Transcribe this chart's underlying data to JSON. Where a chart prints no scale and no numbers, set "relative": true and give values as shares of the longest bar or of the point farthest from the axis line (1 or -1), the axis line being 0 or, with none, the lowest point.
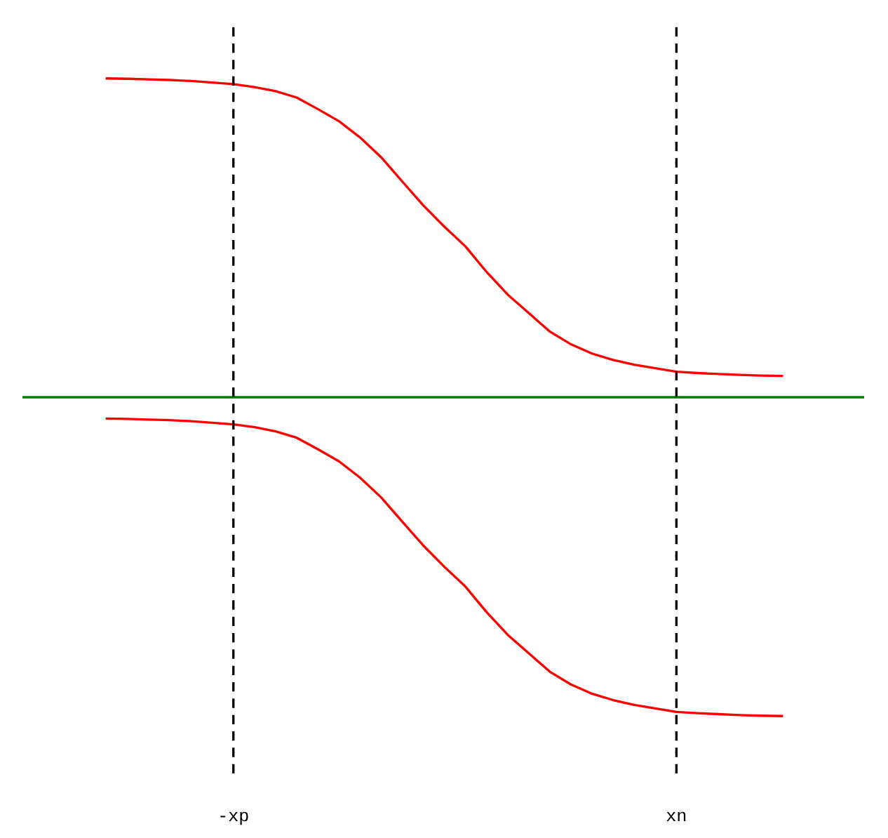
{
  "chart_data": {
    "type": "line",
    "relative": true,
    "tick_labels": "x",
    "line_style": "solid",
    "categories": [
      null,
      null,
      null,
      null,
      null,
      null,
      "-xp",
      null,
      null,
      null,
      null,
      null,
      null,
      null,
      null,
      null,
      null,
      null,
      null,
      null,
      null,
      null,
      null,
      null,
      null,
      null,
      null,
      "xn",
      null,
      null,
      null,
      null,
      null
    ],
    "series": [
      {
        "color": "#ff0000",
        "values": [
          1.0,
          0.999,
          0.997,
          0.995,
          0.992,
          0.987,
          0.982,
          0.973,
          0.96,
          0.94,
          0.904,
          0.866,
          0.815,
          0.753,
          0.677,
          0.602,
          0.535,
          0.473,
          0.393,
          0.322,
          0.264,
          0.206,
          0.166,
          0.137,
          0.117,
          0.102,
          0.091,
          0.08,
          0.076,
          0.073,
          0.07,
          0.068,
          0.067
        ]
      },
      {
        "color": "#ff0000",
        "values": [
          -0.067,
          -0.068,
          -0.07,
          -0.072,
          -0.075,
          -0.08,
          -0.085,
          -0.094,
          -0.107,
          -0.127,
          -0.163,
          -0.201,
          -0.252,
          -0.314,
          -0.39,
          -0.465,
          -0.532,
          -0.594,
          -0.674,
          -0.745,
          -0.803,
          -0.861,
          -0.901,
          -0.93,
          -0.95,
          -0.965,
          -0.976,
          -0.987,
          -0.991,
          -0.994,
          -0.997,
          -0.999,
          -1.0
        ]
      }
    ],
    "ref_lines": [
      {
        "axis": "y",
        "value": 0,
        "color": "#008000",
        "line_style": "solid"
      },
      {
        "axis": "x",
        "value": "-xp",
        "color": "#000000",
        "line_style": "dashed"
      },
      {
        "axis": "x",
        "value": "xn",
        "color": "#000000",
        "line_style": "dashed"
      }
    ]
  }
}
